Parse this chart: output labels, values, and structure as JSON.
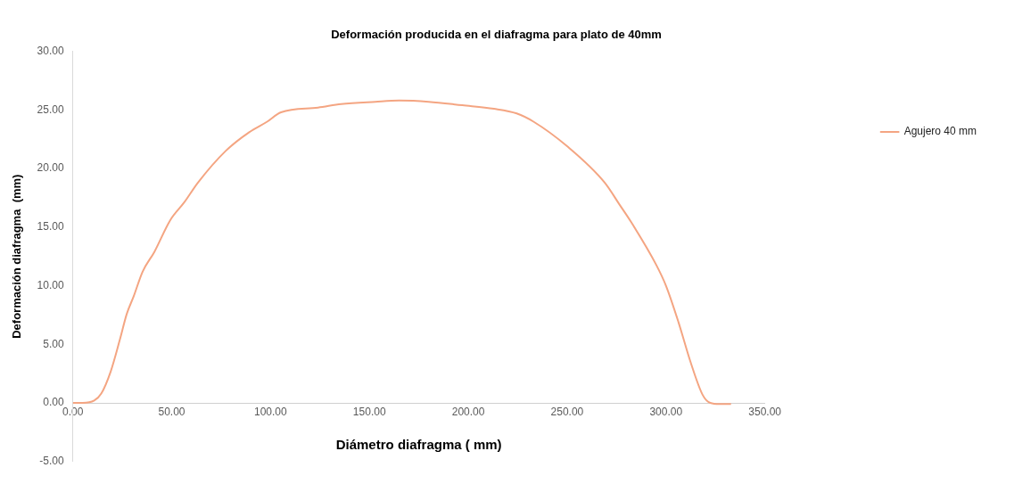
{
  "chart_data": {
    "type": "line",
    "title": "Deformación producida en el diafragma para plato de 40mm",
    "xlabel": "Diámetro diafragma ( mm)",
    "ylabel": "Deformación diafragma  (mm)",
    "xlim": [
      0,
      350
    ],
    "xticks": [
      {
        "value": 0,
        "label": "0.00"
      },
      {
        "value": 50,
        "label": "50.00"
      },
      {
        "value": 100,
        "label": "100.00"
      },
      {
        "value": 150,
        "label": "150.00"
      },
      {
        "value": 200,
        "label": "200.00"
      },
      {
        "value": 250,
        "label": "250.00"
      },
      {
        "value": 300,
        "label": "300.00"
      },
      {
        "value": 350,
        "label": "350.00"
      }
    ],
    "ylim": [
      -5,
      30
    ],
    "yticks": [
      {
        "value": -5,
        "label": "-5.00"
      },
      {
        "value": 0,
        "label": "0.00"
      },
      {
        "value": 5,
        "label": "5.00"
      },
      {
        "value": 10,
        "label": "10.00"
      },
      {
        "value": 15,
        "label": "15.00"
      },
      {
        "value": 20,
        "label": "20.00"
      },
      {
        "value": 25,
        "label": "25.00"
      },
      {
        "value": 30,
        "label": "30.00"
      }
    ],
    "grid": false,
    "legend": "right",
    "marker": "none",
    "line_style": "solid",
    "series": [
      {
        "name": "Agujero 40 mm",
        "color": "#f4a582",
        "x": [
          0,
          5,
          10.8,
          14.4,
          19.2,
          23.8,
          27.3,
          30.8,
          35.3,
          41.3,
          49.3,
          56.3,
          63.3,
          77.3,
          89.2,
          98.3,
          105.3,
          124,
          135.7,
          153,
          165,
          180,
          197,
          213,
          224.5,
          233,
          250,
          269,
          276.6,
          282.5,
          295,
          300,
          306.3,
          312.4,
          318.5,
          322.4,
          327,
          332.9
        ],
        "values": [
          0,
          0,
          0.2,
          0.8,
          2.7,
          5.4,
          7.6,
          9.1,
          11.2,
          12.9,
          15.6,
          17.1,
          18.8,
          21.5,
          23.1,
          24,
          24.8,
          25.2,
          25.5,
          25.7,
          25.8,
          25.7,
          25.4,
          25.1,
          24.7,
          24,
          21.9,
          18.8,
          16.9,
          15.4,
          11.8,
          10,
          6.9,
          3.5,
          0.7,
          0,
          -0.1,
          -0.1
        ]
      }
    ]
  }
}
